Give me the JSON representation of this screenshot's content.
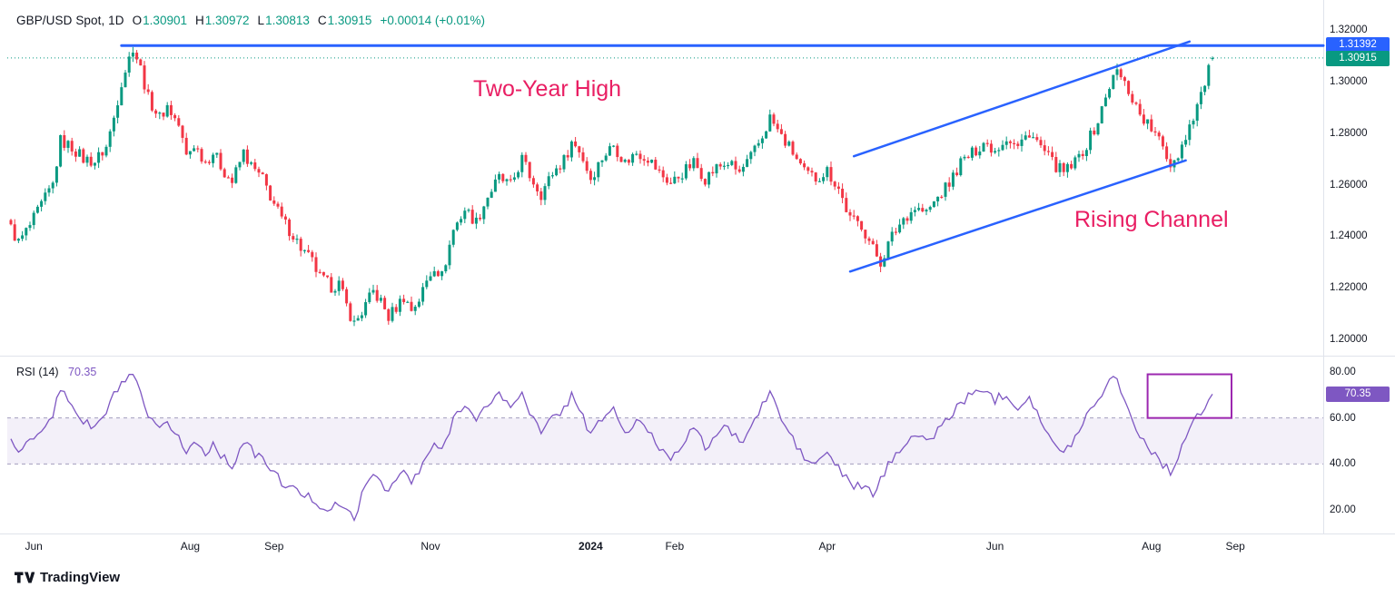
{
  "header": {
    "symbol": "GBP/USD Spot, 1D",
    "o_label": "O",
    "o_value": "1.30901",
    "h_label": "H",
    "h_value": "1.30972",
    "l_label": "L",
    "l_value": "1.30813",
    "c_label": "C",
    "c_value": "1.30915",
    "change": "+0.00014 (+0.01%)"
  },
  "annotations": {
    "two_year_high": {
      "text": "Two-Year High",
      "color": "#e91e63"
    },
    "rising_channel": {
      "text": "Rising Channel",
      "color": "#e91e63"
    }
  },
  "price_labels": {
    "resistance": "1.31392",
    "last": "1.30915",
    "rsi": "70.35"
  },
  "rsi_header": {
    "title": "RSI",
    "params": "(14)",
    "value": "70.35"
  },
  "price_axis": {
    "ticks": [
      "1.32000",
      "1.30000",
      "1.28000",
      "1.26000",
      "1.24000",
      "1.22000",
      "1.20000"
    ],
    "values": [
      1.32,
      1.3,
      1.28,
      1.26,
      1.24,
      1.22,
      1.2
    ]
  },
  "rsi_axis": {
    "ticks": [
      "80.00",
      "60.00",
      "40.00",
      "20.00"
    ],
    "values": [
      80,
      60,
      40,
      20
    ]
  },
  "x_axis": {
    "labels": [
      {
        "text": "Jun",
        "t": 6
      },
      {
        "text": "Aug",
        "t": 47
      },
      {
        "text": "Sep",
        "t": 69
      },
      {
        "text": "Nov",
        "t": 110
      },
      {
        "text": "2024",
        "t": 152,
        "major": true
      },
      {
        "text": "Feb",
        "t": 174
      },
      {
        "text": "Apr",
        "t": 214
      },
      {
        "text": "Jun",
        "t": 258
      },
      {
        "text": "Aug",
        "t": 299
      },
      {
        "text": "Sep",
        "t": 321
      }
    ]
  },
  "footer": {
    "brand": "TradingView"
  },
  "chart_data": [
    {
      "type": "candlestick",
      "title": "GBP/USD Spot, 1D",
      "symbol": "GBP/USD",
      "timeframe": "1D",
      "x_range": "Jun 2023 - Sep 2024",
      "ylim": [
        1.195,
        1.325
      ],
      "up_color": "#089981",
      "down_color": "#f23645",
      "trendline_color": "#2962ff",
      "last_candle": {
        "open": 1.30901,
        "high": 1.30972,
        "low": 1.30813,
        "close": 1.30915
      },
      "levels": {
        "two_year_high": 1.31392,
        "last_price": 1.30915
      },
      "resistance_start_t": 29,
      "channel": {
        "upper": [
          [
            221,
            1.271
          ],
          [
            309,
            1.3155
          ]
        ],
        "lower": [
          [
            220,
            1.2263
          ],
          [
            308,
            1.2694
          ]
        ]
      },
      "close_anchors": [
        [
          0,
          1.243
        ],
        [
          2,
          1.2375
        ],
        [
          5,
          1.244
        ],
        [
          8,
          1.252
        ],
        [
          11,
          1.26
        ],
        [
          13,
          1.277
        ],
        [
          16,
          1.2745
        ],
        [
          19,
          1.27
        ],
        [
          22,
          1.269
        ],
        [
          25,
          1.2745
        ],
        [
          27,
          1.286
        ],
        [
          29,
          1.3
        ],
        [
          32,
          1.3135
        ],
        [
          34,
          1.305
        ],
        [
          36,
          1.2935
        ],
        [
          39,
          1.286
        ],
        [
          41,
          1.2905
        ],
        [
          44,
          1.283
        ],
        [
          46,
          1.271
        ],
        [
          48,
          1.2755
        ],
        [
          51,
          1.269
        ],
        [
          53,
          1.2725
        ],
        [
          56,
          1.265
        ],
        [
          58,
          1.261
        ],
        [
          61,
          1.2725
        ],
        [
          63,
          1.267
        ],
        [
          66,
          1.262
        ],
        [
          69,
          1.2525
        ],
        [
          71,
          1.2465
        ],
        [
          74,
          1.2405
        ],
        [
          76,
          1.2355
        ],
        [
          79,
          1.23
        ],
        [
          81,
          1.224
        ],
        [
          84,
          1.2205
        ],
        [
          86,
          1.2215
        ],
        [
          88,
          1.213
        ],
        [
          90,
          1.206
        ],
        [
          92,
          1.2105
        ],
        [
          95,
          1.2185
        ],
        [
          97,
          1.2145
        ],
        [
          99,
          1.2085
        ],
        [
          101,
          1.2125
        ],
        [
          103,
          1.2165
        ],
        [
          105,
          1.2115
        ],
        [
          107,
          1.2155
        ],
        [
          109,
          1.2225
        ],
        [
          111,
          1.2285
        ],
        [
          113,
          1.2245
        ],
        [
          116,
          1.2425
        ],
        [
          119,
          1.2505
        ],
        [
          122,
          1.2455
        ],
        [
          125,
          1.2555
        ],
        [
          128,
          1.2625
        ],
        [
          131,
          1.2595
        ],
        [
          134,
          1.27
        ],
        [
          136,
          1.2635
        ],
        [
          139,
          1.2565
        ],
        [
          142,
          1.2645
        ],
        [
          145,
          1.2695
        ],
        [
          147,
          1.2765
        ],
        [
          149,
          1.2735
        ],
        [
          152,
          1.2625
        ],
        [
          155,
          1.2705
        ],
        [
          158,
          1.2755
        ],
        [
          161,
          1.2685
        ],
        [
          164,
          1.2725
        ],
        [
          167,
          1.2705
        ],
        [
          170,
          1.2645
        ],
        [
          173,
          1.2605
        ],
        [
          176,
          1.2645
        ],
        [
          179,
          1.2685
        ],
        [
          182,
          1.2625
        ],
        [
          185,
          1.2665
        ],
        [
          188,
          1.2685
        ],
        [
          191,
          1.2645
        ],
        [
          194,
          1.2705
        ],
        [
          197,
          1.2785
        ],
        [
          199,
          1.286
        ],
        [
          202,
          1.2785
        ],
        [
          205,
          1.2725
        ],
        [
          208,
          1.2645
        ],
        [
          211,
          1.2625
        ],
        [
          214,
          1.2655
        ],
        [
          217,
          1.2585
        ],
        [
          220,
          1.2465
        ],
        [
          223,
          1.2445
        ],
        [
          226,
          1.235
        ],
        [
          228,
          1.23
        ],
        [
          231,
          1.24
        ],
        [
          234,
          1.247
        ],
        [
          237,
          1.251
        ],
        [
          240,
          1.249
        ],
        [
          243,
          1.255
        ],
        [
          246,
          1.2605
        ],
        [
          249,
          1.2685
        ],
        [
          252,
          1.272
        ],
        [
          255,
          1.2765
        ],
        [
          258,
          1.2735
        ],
        [
          261,
          1.2785
        ],
        [
          264,
          1.2745
        ],
        [
          267,
          1.2805
        ],
        [
          270,
          1.2745
        ],
        [
          273,
          1.2685
        ],
        [
          276,
          1.2645
        ],
        [
          279,
          1.2685
        ],
        [
          282,
          1.2755
        ],
        [
          285,
          1.2845
        ],
        [
          288,
          1.2985
        ],
        [
          290,
          1.304
        ],
        [
          293,
          1.2965
        ],
        [
          296,
          1.2875
        ],
        [
          299,
          1.2815
        ],
        [
          302,
          1.2745
        ],
        [
          304,
          1.268
        ],
        [
          306,
          1.272
        ],
        [
          308,
          1.279
        ],
        [
          310,
          1.287
        ],
        [
          312,
          1.295
        ],
        [
          314,
          1.304
        ],
        [
          315,
          1.3092
        ]
      ]
    },
    {
      "type": "line",
      "name": "RSI (14)",
      "ylim": [
        13,
        87
      ],
      "color": "#7e57c2",
      "band": [
        40,
        60
      ],
      "band_fill": "rgba(126,87,194,0.09)",
      "band_line_color": "#a29dbd",
      "highlight_color": "#9c27b0",
      "last_value": 70.35,
      "highlight_box": {
        "t1": 298,
        "t2": 320,
        "v1": 60,
        "v2": 79
      },
      "anchors": [
        [
          0,
          52
        ],
        [
          2,
          44
        ],
        [
          5,
          50
        ],
        [
          8,
          56
        ],
        [
          11,
          62
        ],
        [
          13,
          72
        ],
        [
          16,
          66
        ],
        [
          19,
          58
        ],
        [
          22,
          56
        ],
        [
          25,
          62
        ],
        [
          27,
          70
        ],
        [
          29,
          75
        ],
        [
          32,
          78
        ],
        [
          34,
          70
        ],
        [
          36,
          60
        ],
        [
          39,
          54
        ],
        [
          41,
          58
        ],
        [
          44,
          52
        ],
        [
          46,
          44
        ],
        [
          48,
          50
        ],
        [
          51,
          45
        ],
        [
          53,
          49
        ],
        [
          56,
          42
        ],
        [
          58,
          39
        ],
        [
          61,
          50
        ],
        [
          63,
          46
        ],
        [
          66,
          42
        ],
        [
          69,
          36
        ],
        [
          71,
          32
        ],
        [
          74,
          29
        ],
        [
          76,
          27
        ],
        [
          79,
          25
        ],
        [
          81,
          22
        ],
        [
          84,
          20
        ],
        [
          86,
          23
        ],
        [
          88,
          19
        ],
        [
          90,
          17
        ],
        [
          92,
          26
        ],
        [
          95,
          36
        ],
        [
          97,
          33
        ],
        [
          99,
          28
        ],
        [
          101,
          33
        ],
        [
          103,
          37
        ],
        [
          105,
          32
        ],
        [
          107,
          36
        ],
        [
          109,
          43
        ],
        [
          111,
          49
        ],
        [
          113,
          45
        ],
        [
          116,
          60
        ],
        [
          119,
          67
        ],
        [
          122,
          58
        ],
        [
          125,
          66
        ],
        [
          128,
          71
        ],
        [
          131,
          64
        ],
        [
          134,
          72
        ],
        [
          136,
          63
        ],
        [
          139,
          53
        ],
        [
          142,
          60
        ],
        [
          145,
          64
        ],
        [
          147,
          70
        ],
        [
          149,
          65
        ],
        [
          152,
          52
        ],
        [
          155,
          60
        ],
        [
          158,
          64
        ],
        [
          161,
          53
        ],
        [
          164,
          58
        ],
        [
          167,
          55
        ],
        [
          170,
          47
        ],
        [
          173,
          43
        ],
        [
          176,
          49
        ],
        [
          179,
          56
        ],
        [
          182,
          47
        ],
        [
          185,
          53
        ],
        [
          188,
          56
        ],
        [
          191,
          49
        ],
        [
          194,
          56
        ],
        [
          197,
          65
        ],
        [
          199,
          72
        ],
        [
          202,
          59
        ],
        [
          205,
          51
        ],
        [
          208,
          42
        ],
        [
          211,
          40
        ],
        [
          214,
          45
        ],
        [
          217,
          38
        ],
        [
          220,
          31
        ],
        [
          223,
          30
        ],
        [
          226,
          27
        ],
        [
          228,
          33
        ],
        [
          231,
          42
        ],
        [
          234,
          49
        ],
        [
          237,
          53
        ],
        [
          240,
          49
        ],
        [
          243,
          55
        ],
        [
          246,
          60
        ],
        [
          249,
          67
        ],
        [
          252,
          70
        ],
        [
          255,
          73
        ],
        [
          258,
          68
        ],
        [
          261,
          71
        ],
        [
          264,
          64
        ],
        [
          267,
          70
        ],
        [
          270,
          59
        ],
        [
          273,
          49
        ],
        [
          276,
          44
        ],
        [
          279,
          52
        ],
        [
          282,
          61
        ],
        [
          285,
          69
        ],
        [
          288,
          76
        ],
        [
          290,
          78
        ],
        [
          293,
          63
        ],
        [
          296,
          52
        ],
        [
          299,
          46
        ],
        [
          302,
          40
        ],
        [
          304,
          36
        ],
        [
          306,
          44
        ],
        [
          308,
          52
        ],
        [
          310,
          58
        ],
        [
          312,
          62
        ],
        [
          314,
          67
        ],
        [
          315,
          70.35
        ]
      ]
    }
  ]
}
